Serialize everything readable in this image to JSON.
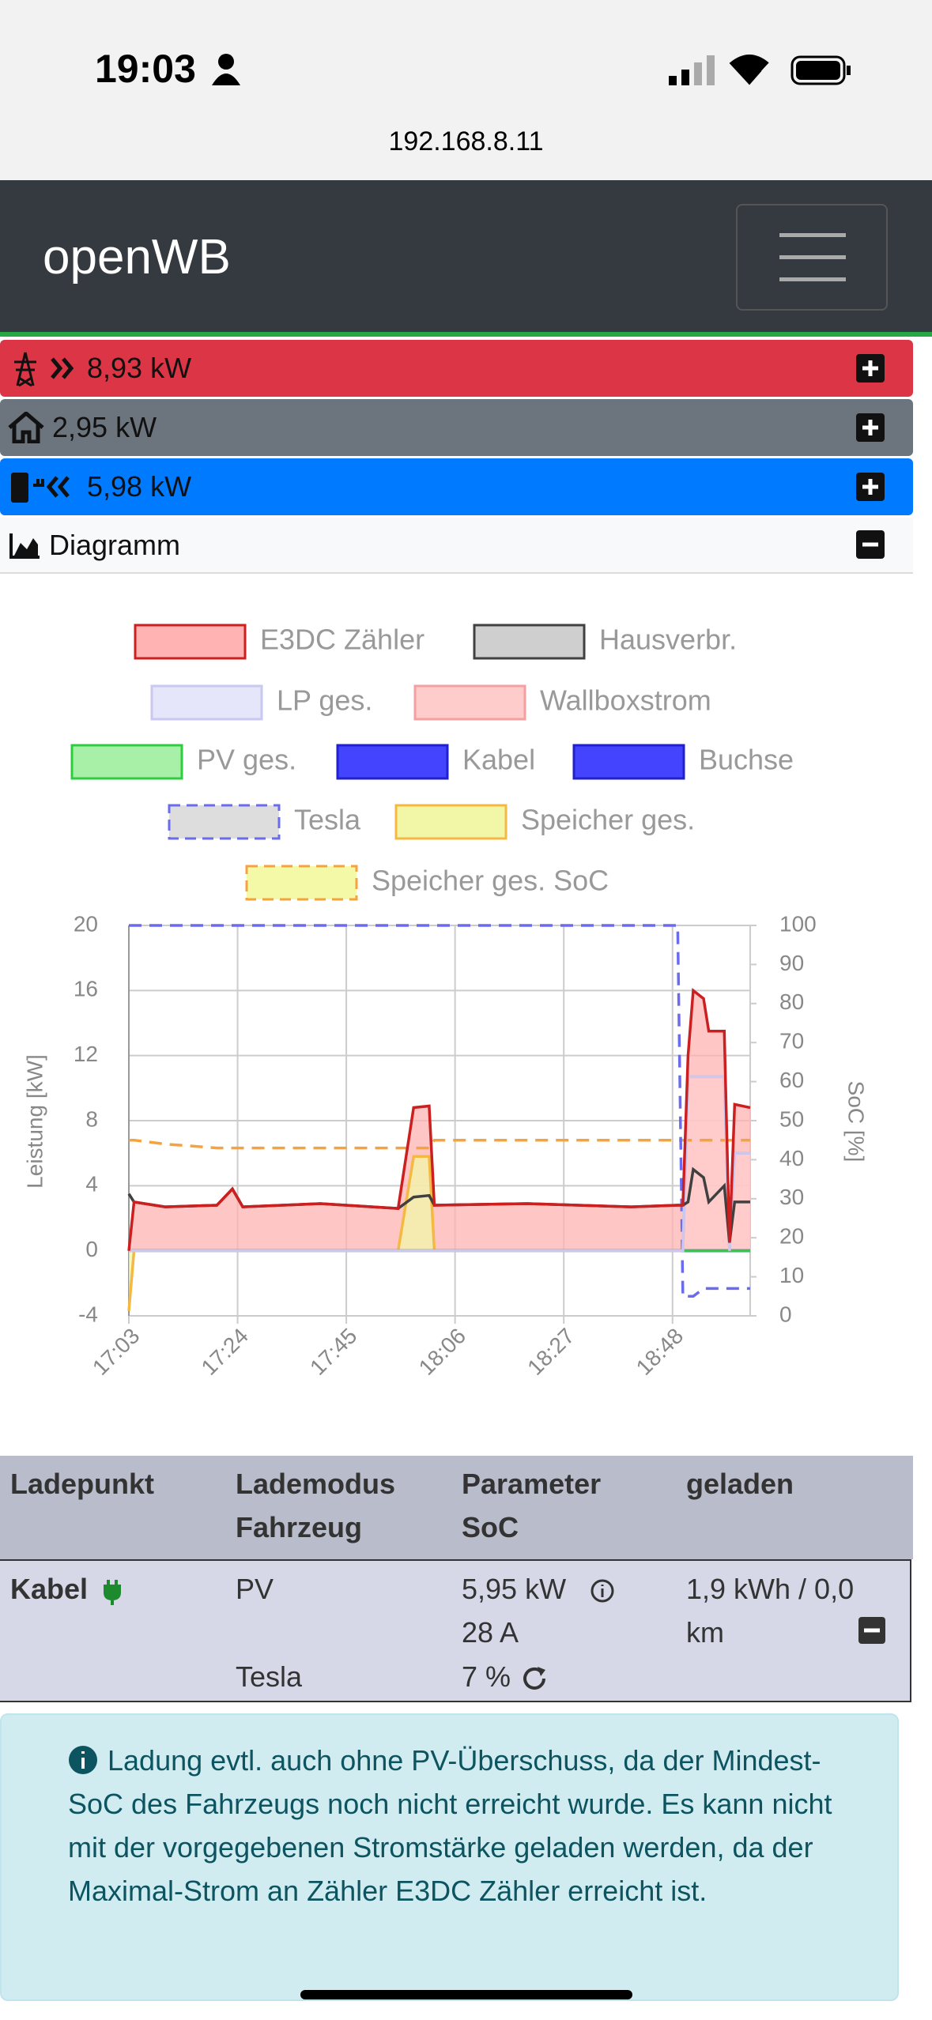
{
  "status_bar": {
    "time": "19:03",
    "url": "192.168.8.11"
  },
  "header": {
    "title": "openWB"
  },
  "panels": [
    {
      "label": "8,93 kW"
    },
    {
      "label": "2,95 kW"
    },
    {
      "label": "5,98 kW"
    },
    {
      "label": "Diagramm"
    }
  ],
  "chart_data": {
    "type": "line",
    "ylabel": "Leistung [kW]",
    "y2label": "SoC [%]",
    "x": [
      "17:03",
      "17:04",
      "17:10",
      "17:20",
      "17:23",
      "17:25",
      "17:40",
      "17:55",
      "17:58",
      "18:01",
      "18:02",
      "18:20",
      "18:40",
      "18:49",
      "18:50",
      "18:51",
      "18:52",
      "18:54",
      "18:55",
      "18:58",
      "18:59",
      "19:00",
      "19:03"
    ],
    "xlim": [
      "17:03",
      "19:03"
    ],
    "xticks": [
      "17:03",
      "17:24",
      "17:45",
      "18:06",
      "18:27",
      "18:48"
    ],
    "ylim": [
      -4,
      20
    ],
    "yticks": [
      -4,
      0,
      4,
      8,
      12,
      16,
      20
    ],
    "y2lim": [
      0,
      100
    ],
    "y2ticks": [
      0,
      10,
      20,
      30,
      40,
      50,
      60,
      70,
      80,
      90,
      100
    ],
    "grid": true,
    "series": [
      {
        "name": "E3DC Zähler",
        "color": "#cc1f1f",
        "fill": "#ffb3b3",
        "area": true,
        "values": [
          0,
          3,
          2.7,
          2.8,
          3.8,
          2.7,
          2.9,
          2.6,
          8.8,
          8.9,
          2.8,
          2.9,
          2.7,
          2.8,
          2.8,
          12,
          16,
          15.5,
          13.5,
          13.5,
          0.5,
          9,
          8.8
        ]
      },
      {
        "name": "Hausverbr.",
        "color": "#404040",
        "fill": "#cfcfcf",
        "area": false,
        "values": [
          3.5,
          3,
          2.7,
          2.8,
          3.8,
          2.7,
          2.9,
          2.6,
          3.3,
          3.4,
          2.8,
          2.9,
          2.7,
          2.8,
          2.8,
          3,
          5,
          4.5,
          3,
          4,
          0.5,
          3,
          3
        ]
      },
      {
        "name": "LP ges.",
        "color": "#c8c8f0",
        "fill": "#e6e6fa",
        "area": false,
        "values": [
          0,
          0,
          0,
          0,
          0,
          0,
          0,
          0,
          0,
          0,
          0,
          0,
          0,
          0,
          0,
          10.7,
          10.7,
          10.7,
          10.7,
          10.7,
          0,
          6,
          6
        ]
      },
      {
        "name": "Wallboxstrom",
        "color": "#f5a0a0",
        "fill": "#ffcccc",
        "area": true,
        "values": [
          0,
          0,
          0,
          0,
          0,
          0,
          0,
          0,
          0,
          0,
          0,
          0,
          0,
          0,
          0,
          10.7,
          10.7,
          10.7,
          10.7,
          10.7,
          0,
          6,
          6
        ]
      },
      {
        "name": "PV ges.",
        "color": "#2ecc40",
        "fill": "#a8f0a8",
        "area": false,
        "values": [
          0,
          0,
          0,
          0,
          0,
          0,
          0,
          0,
          0,
          0,
          0,
          0,
          0,
          0,
          0,
          0,
          0,
          0,
          0,
          0,
          0,
          0,
          0
        ]
      },
      {
        "name": "Kabel",
        "color": "#2020cc",
        "fill": "#4444ff",
        "area": false,
        "values": [
          0,
          0,
          0,
          0,
          0,
          0,
          0,
          0,
          0,
          0,
          0,
          0,
          0,
          0,
          0,
          0,
          0,
          0,
          0,
          0,
          0,
          0,
          0
        ]
      },
      {
        "name": "Buchse",
        "color": "#2020cc",
        "fill": "#4444ff",
        "area": false,
        "values": [
          0,
          0,
          0,
          0,
          0,
          0,
          0,
          0,
          0,
          0,
          0,
          0,
          0,
          0,
          0,
          0,
          0,
          0,
          0,
          0,
          0,
          0,
          0
        ]
      },
      {
        "name": "Tesla",
        "color": "#6b6bf0",
        "fill": "#dddddd",
        "area": false,
        "dashed": true,
        "axis": "y2",
        "values": [
          100,
          100,
          100,
          100,
          100,
          100,
          100,
          100,
          100,
          100,
          100,
          100,
          100,
          100,
          5,
          5,
          5,
          7,
          7,
          7,
          7,
          7,
          7
        ]
      },
      {
        "name": "Speicher ges.",
        "color": "#f5b942",
        "fill": "#f2f7a8",
        "area": true,
        "values": [
          -3.7,
          0,
          0,
          0,
          0,
          0,
          0,
          0,
          5.8,
          5.8,
          0,
          0,
          0,
          0,
          0,
          0,
          0,
          0,
          0,
          0,
          0,
          0,
          0
        ]
      },
      {
        "name": "Speicher ges. SoC",
        "color": "#f5a33c",
        "fill": "#f4f9a8",
        "area": false,
        "dashed": true,
        "axis": "y2",
        "values": [
          45,
          45,
          44,
          43,
          43,
          43,
          43,
          43,
          43,
          43,
          45,
          45,
          45,
          45,
          45,
          45,
          45,
          45,
          45,
          45,
          45,
          45,
          45
        ]
      }
    ]
  },
  "table": {
    "headers": [
      [
        "Ladepunkt"
      ],
      [
        "Lademodus",
        "Fahrzeug"
      ],
      [
        "Parameter",
        "SoC"
      ],
      [
        "geladen"
      ]
    ],
    "rows": [
      [
        "Kabel"
      ],
      [
        "PV",
        "Tesla"
      ],
      [
        "5,95 kW",
        "28 A",
        "7 %"
      ],
      [
        "1,9 kWh / 0,0 km"
      ]
    ]
  },
  "alert": "Ladung evtl. auch ohne PV-Überschuss, da der Mindest-SoC des Fahrzeugs noch nicht erreicht wurde. Es kann nicht mit der vorgegebenen Stromstärke geladen werden, da der Maximal-Strom an Zähler E3DC Zähler erreicht ist."
}
